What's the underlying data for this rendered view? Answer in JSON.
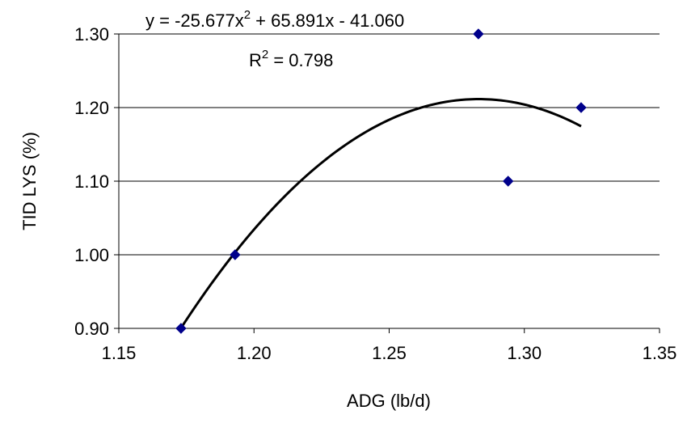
{
  "chart_data": {
    "type": "scatter",
    "xlabel": "ADG (lb/d)",
    "ylabel": "TID LYS (%)",
    "xlim": [
      1.15,
      1.35
    ],
    "ylim": [
      0.9,
      1.3
    ],
    "x_ticks": [
      "1.15",
      "1.20",
      "1.25",
      "1.30",
      "1.35"
    ],
    "y_ticks": [
      "0.90",
      "1.00",
      "1.10",
      "1.20",
      "1.30"
    ],
    "grid": "horizontal",
    "series": [
      {
        "marker": "diamond",
        "color": "#00008B",
        "points": [
          {
            "x": 1.173,
            "y": 0.9
          },
          {
            "x": 1.193,
            "y": 1.0
          },
          {
            "x": 1.283,
            "y": 1.3
          },
          {
            "x": 1.294,
            "y": 1.1
          },
          {
            "x": 1.321,
            "y": 1.2
          }
        ]
      }
    ],
    "trendline": {
      "type": "polynomial",
      "order": 2,
      "coefficients": [
        -25.677,
        65.891,
        -41.06
      ],
      "x_range": [
        1.173,
        1.321
      ],
      "color": "#000000"
    },
    "annotations": {
      "equation": {
        "prefix": "y = -25.677x",
        "exponent": "2",
        "suffix": " + 65.891x - 41.060"
      },
      "r_squared": {
        "prefix": "R",
        "exponent": "2",
        "suffix": " = 0.798"
      }
    }
  }
}
